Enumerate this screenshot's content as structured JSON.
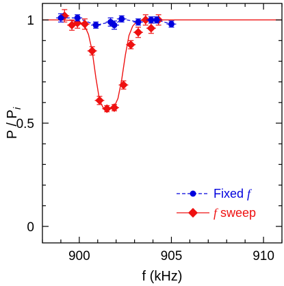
{
  "chart_data": {
    "type": "line",
    "xlabel": "f (kHz)",
    "ylabel": "P / P",
    "ylabel_subscript": "i",
    "xlim": [
      898,
      911
    ],
    "ylim": [
      -0.08,
      1.08
    ],
    "x_ticks": [
      900,
      905,
      910
    ],
    "x_tick_labels": [
      "900",
      "905",
      "910"
    ],
    "y_ticks": [
      0,
      0.5,
      1
    ],
    "y_tick_labels": [
      "0",
      "0.5",
      "1"
    ],
    "legend_position": "bottom-right",
    "series": [
      {
        "name": "Fixed",
        "name_italic": "f",
        "color": "#0000dd",
        "marker": "circle",
        "line_style": "dashed",
        "x": [
          899.0,
          899.9,
          900.9,
          901.7,
          901.9,
          902.3,
          903.2,
          903.9,
          904.2,
          905.0
        ],
        "y": [
          1.01,
          1.01,
          0.975,
          0.99,
          0.975,
          1.005,
          0.99,
          1.0,
          1.0,
          0.98
        ],
        "err": [
          0.02,
          0.015,
          0.015,
          0.02,
          0.02,
          0.015,
          0.015,
          0.015,
          0.015,
          0.015
        ]
      },
      {
        "name": "sweep",
        "name_italic": "f",
        "color": "#ee1111",
        "marker": "diamond",
        "line_style": "solid",
        "x": [
          899.2,
          899.6,
          899.9,
          900.3,
          900.7,
          901.1,
          901.5,
          901.9,
          902.4,
          902.8,
          903.2,
          903.6,
          903.9,
          904.3
        ],
        "y": [
          1.02,
          0.975,
          0.985,
          0.98,
          0.85,
          0.61,
          0.57,
          0.575,
          0.685,
          0.88,
          0.94,
          1.0,
          0.96,
          1.0
        ],
        "err": [
          0.03,
          0.025,
          0.025,
          0.025,
          0.02,
          0.02,
          0.015,
          0.015,
          0.02,
          0.02,
          0.025,
          0.025,
          0.025,
          0.025
        ],
        "fit": {
          "x": [
            898,
            899,
            899.5,
            900.0,
            900.3,
            900.5,
            900.7,
            900.9,
            901.1,
            901.3,
            901.5,
            901.7,
            901.9,
            902.1,
            902.3,
            902.5,
            902.7,
            902.9,
            903.1,
            903.4,
            904.0,
            905.0,
            911
          ],
          "y": [
            1.0,
            1.0,
            0.998,
            0.99,
            0.97,
            0.93,
            0.85,
            0.72,
            0.61,
            0.575,
            0.57,
            0.57,
            0.58,
            0.62,
            0.71,
            0.83,
            0.925,
            0.97,
            0.99,
            0.998,
            1.0,
            1.0,
            1.0
          ]
        }
      }
    ]
  }
}
